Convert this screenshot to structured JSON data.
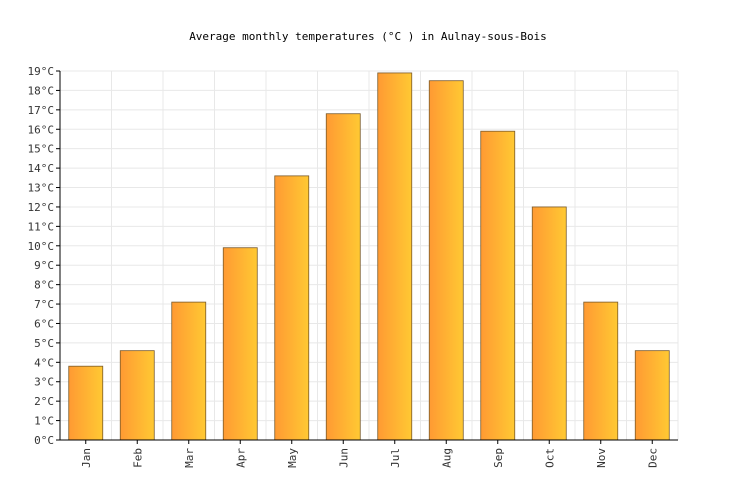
{
  "chart_data": {
    "type": "bar",
    "title": "Average monthly temperatures (°C ) in Aulnay-sous-Bois",
    "categories": [
      "Jan",
      "Feb",
      "Mar",
      "Apr",
      "May",
      "Jun",
      "Jul",
      "Aug",
      "Sep",
      "Oct",
      "Nov",
      "Dec"
    ],
    "values": [
      3.8,
      4.6,
      7.1,
      9.9,
      13.6,
      16.8,
      18.9,
      18.5,
      15.9,
      12.0,
      7.1,
      4.6
    ],
    "ylim": [
      0,
      19
    ],
    "yticks": [
      "0°C",
      "1°C",
      "2°C",
      "3°C",
      "4°C",
      "5°C",
      "6°C",
      "7°C",
      "8°C",
      "9°C",
      "10°C",
      "11°C",
      "12°C",
      "13°C",
      "14°C",
      "15°C",
      "16°C",
      "17°C",
      "18°C",
      "19°C"
    ],
    "grid": true,
    "colors": {
      "bar_left": "#ff9a33",
      "bar_right": "#ffc933",
      "bar_stroke": "#7a5a2a"
    }
  }
}
